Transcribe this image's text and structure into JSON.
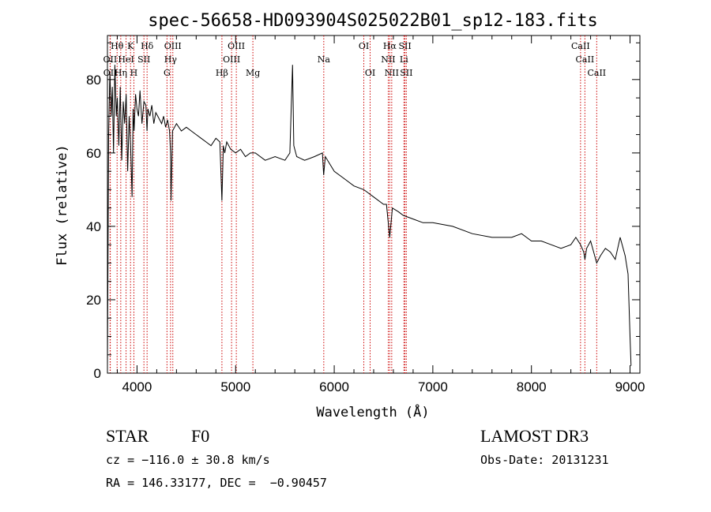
{
  "chart_data": {
    "type": "line",
    "title": "spec-56658-HD093904S025022B01_sp12-183.fits",
    "xlabel": "Wavelength (Å)",
    "ylabel": "Flux (relative)",
    "xlim": [
      3700,
      9100
    ],
    "ylim": [
      0,
      92
    ],
    "x_ticks": [
      4000,
      5000,
      6000,
      7000,
      8000,
      9000
    ],
    "y_ticks": [
      0,
      20,
      40,
      60,
      80
    ],
    "grid": false,
    "series": [
      {
        "x": [
          3700,
          3712,
          3725,
          3738,
          3750,
          3762,
          3775,
          3790,
          3800,
          3815,
          3830,
          3845,
          3860,
          3875,
          3890,
          3905,
          3920,
          3935,
          3950,
          3960,
          3970,
          3985,
          4000,
          4015,
          4030,
          4050,
          4070,
          4090,
          4101,
          4110,
          4130,
          4150,
          4170,
          4190,
          4210,
          4230,
          4250,
          4270,
          4290,
          4310,
          4330,
          4340,
          4345,
          4360,
          4380,
          4400,
          4450,
          4500,
          4550,
          4600,
          4650,
          4700,
          4750,
          4800,
          4840,
          4861,
          4875,
          4890,
          4910,
          4950,
          5000,
          5050,
          5100,
          5150,
          5200,
          5300,
          5400,
          5500,
          5550,
          5577,
          5590,
          5620,
          5700,
          5800,
          5880,
          5893,
          5910,
          6000,
          6100,
          6200,
          6300,
          6400,
          6500,
          6530,
          6563,
          6590,
          6650,
          6700,
          6800,
          6900,
          7000,
          7200,
          7400,
          7600,
          7800,
          7900,
          7950,
          8000,
          8100,
          8200,
          8300,
          8400,
          8450,
          8498,
          8530,
          8542,
          8560,
          8600,
          8662,
          8700,
          8750,
          8800,
          8850,
          8900,
          8950,
          8980,
          9000,
          9010
        ],
        "y": [
          2,
          65,
          82,
          70,
          78,
          60,
          84,
          70,
          75,
          62,
          78,
          58,
          74,
          68,
          76,
          55,
          70,
          62,
          48,
          72,
          66,
          76,
          72,
          70,
          77,
          68,
          74,
          73,
          66,
          72,
          70,
          73,
          68,
          71,
          70,
          69,
          68,
          70,
          67,
          69,
          66,
          60,
          47,
          66,
          67,
          68,
          66,
          67,
          66,
          65,
          64,
          63,
          62,
          64,
          63,
          47,
          62,
          60,
          63,
          61,
          60,
          61,
          59,
          60,
          60,
          58,
          59,
          58,
          60,
          84,
          62,
          59,
          58,
          59,
          60,
          54,
          59,
          55,
          53,
          51,
          50,
          48,
          46,
          46,
          37,
          45,
          44,
          43,
          42,
          41,
          41,
          40,
          38,
          37,
          37,
          38,
          37,
          36,
          36,
          35,
          34,
          35,
          37,
          35,
          33,
          31,
          34,
          36,
          30,
          32,
          34,
          33,
          31,
          37,
          32,
          27,
          10,
          2
        ]
      }
    ],
    "annotations": [
      {
        "label": "OII",
        "x": 3727,
        "row": 2
      },
      {
        "label": "OII",
        "x": 3729,
        "row": 3
      },
      {
        "label": "Hθ",
        "x": 3798,
        "row": 1
      },
      {
        "label": "Hη",
        "x": 3835,
        "row": 3
      },
      {
        "label": "HeI",
        "x": 3889,
        "row": 2
      },
      {
        "label": "K",
        "x": 3934,
        "row": 1
      },
      {
        "label": "H",
        "x": 3968,
        "row": 3
      },
      {
        "label": "SII",
        "x": 4070,
        "row": 2
      },
      {
        "label": "Hδ",
        "x": 4102,
        "row": 1
      },
      {
        "label": "G",
        "x": 4304,
        "row": 3
      },
      {
        "label": "Hγ",
        "x": 4340,
        "row": 2
      },
      {
        "label": "OIII",
        "x": 4363,
        "row": 1
      },
      {
        "label": "Hβ",
        "x": 4861,
        "row": 3
      },
      {
        "label": "OIII",
        "x": 4959,
        "row": 2
      },
      {
        "label": "OIII",
        "x": 5007,
        "row": 1
      },
      {
        "label": "Mg",
        "x": 5175,
        "row": 3
      },
      {
        "label": "Na",
        "x": 5894,
        "row": 2
      },
      {
        "label": "OI",
        "x": 6300,
        "row": 1
      },
      {
        "label": "OI",
        "x": 6364,
        "row": 3
      },
      {
        "label": "NII",
        "x": 6548,
        "row": 2
      },
      {
        "label": "Hα",
        "x": 6563,
        "row": 1
      },
      {
        "label": "NII",
        "x": 6583,
        "row": 3
      },
      {
        "label": "Li",
        "x": 6707,
        "row": 2
      },
      {
        "label": "SII",
        "x": 6717,
        "row": 1
      },
      {
        "label": "SII",
        "x": 6731,
        "row": 3
      },
      {
        "label": "CaII",
        "x": 8498,
        "row": 1
      },
      {
        "label": "CaII",
        "x": 8542,
        "row": 2
      },
      {
        "label": "CaII",
        "x": 8662,
        "row": 3
      }
    ],
    "line_color": "#000000",
    "marker_color": "#cc0000"
  },
  "footer": {
    "object_class": "STAR",
    "subclass": "F0",
    "survey": "LAMOST DR3",
    "redshift": "cz = −116.0 ± 30.8 km/s",
    "obs_date": "Obs-Date: 20131231",
    "coords": "RA = 146.33177, DEC =  −0.90457"
  }
}
